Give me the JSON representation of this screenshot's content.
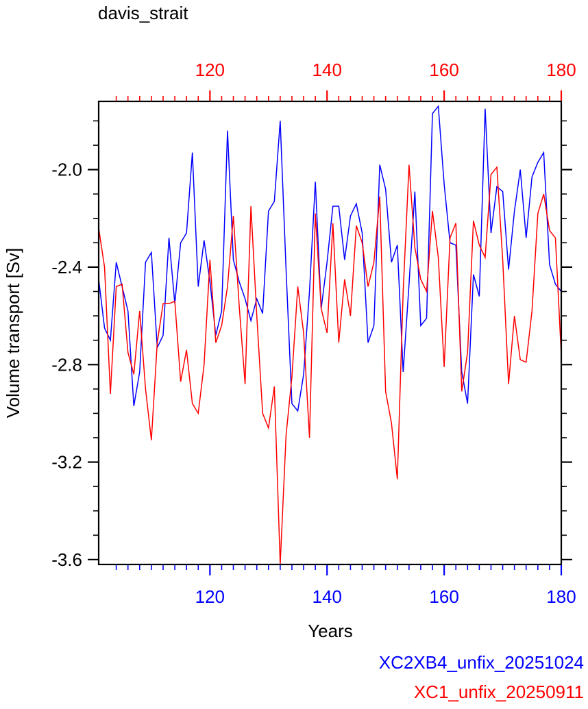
{
  "chart_data": {
    "type": "line",
    "title": "davis_strait",
    "xlabel": "Years",
    "ylabel": "Volume transport [Sv]",
    "xlim": [
      101,
      180
    ],
    "ylim": [
      -3.62,
      -1.72
    ],
    "xticks": [
      120,
      140,
      160,
      180
    ],
    "yticks": [
      -2.0,
      -2.4,
      -2.8,
      -3.2,
      -3.6
    ],
    "ytick_labels": [
      "-2.0",
      "-2.4",
      "-2.8",
      "-3.2",
      "-3.6"
    ],
    "x_bottom_color": "#0000ff",
    "x_top_color": "#ff0000",
    "series": [
      {
        "name": "XC2XB4_unfix_20251024",
        "color": "#0000ff",
        "x_start": 101,
        "values": [
          -2.45,
          -2.65,
          -2.7,
          -2.38,
          -2.48,
          -2.58,
          -2.97,
          -2.83,
          -2.38,
          -2.34,
          -2.73,
          -2.68,
          -2.28,
          -2.55,
          -2.3,
          -2.26,
          -1.93,
          -2.48,
          -2.29,
          -2.46,
          -2.68,
          -2.58,
          -1.84,
          -2.37,
          -2.46,
          -2.53,
          -2.62,
          -2.53,
          -2.59,
          -2.17,
          -2.13,
          -1.8,
          -2.41,
          -2.96,
          -2.99,
          -2.84,
          -2.5,
          -2.05,
          -2.57,
          -2.38,
          -2.15,
          -2.15,
          -2.37,
          -2.19,
          -2.14,
          -2.26,
          -2.71,
          -2.64,
          -1.98,
          -2.08,
          -2.38,
          -2.31,
          -2.83,
          -2.47,
          -2.09,
          -2.64,
          -2.61,
          -1.77,
          -1.74,
          -2.06,
          -2.3,
          -2.31,
          -2.83,
          -2.96,
          -2.43,
          -2.52,
          -1.75,
          -2.26,
          -2.07,
          -2.09,
          -2.41,
          -2.17,
          -2.0,
          -2.28,
          -2.03,
          -1.97,
          -1.93,
          -2.39,
          -2.47,
          -2.5
        ]
      },
      {
        "name": "XC1_unfix_20250911",
        "color": "#ff0000",
        "x_start": 101,
        "values": [
          -2.24,
          -2.4,
          -2.92,
          -2.48,
          -2.47,
          -2.75,
          -2.84,
          -2.58,
          -2.9,
          -3.11,
          -2.71,
          -2.55,
          -2.55,
          -2.54,
          -2.87,
          -2.74,
          -2.96,
          -3.0,
          -2.8,
          -2.37,
          -2.71,
          -2.64,
          -2.48,
          -2.19,
          -2.56,
          -2.88,
          -2.15,
          -2.6,
          -3.0,
          -3.06,
          -2.89,
          -3.62,
          -3.09,
          -2.85,
          -2.48,
          -2.67,
          -3.1,
          -2.18,
          -2.57,
          -2.67,
          -2.22,
          -2.71,
          -2.45,
          -2.6,
          -2.23,
          -2.3,
          -2.48,
          -2.38,
          -2.11,
          -2.91,
          -3.04,
          -3.27,
          -2.5,
          -1.98,
          -2.32,
          -2.45,
          -2.5,
          -2.17,
          -2.36,
          -2.81,
          -2.28,
          -2.22,
          -2.91,
          -2.75,
          -2.21,
          -2.31,
          -2.36,
          -2.02,
          -1.99,
          -2.37,
          -2.88,
          -2.6,
          -2.78,
          -2.79,
          -2.58,
          -2.18,
          -2.1,
          -2.25,
          -2.28,
          -2.76
        ]
      }
    ]
  }
}
